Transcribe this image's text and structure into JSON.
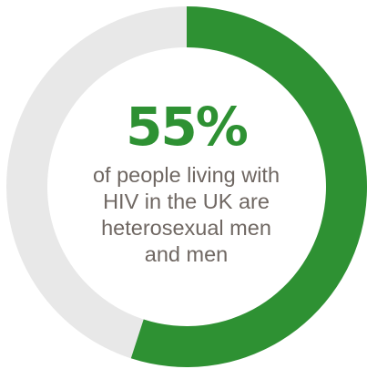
{
  "chart_data": {
    "type": "pie",
    "value_percent": 55,
    "highlight_label": "55%",
    "caption_lines": [
      "of people living with",
      "HIV in the UK are",
      "heterosexual men",
      "and men"
    ],
    "colors": {
      "value": "#2e9133",
      "remainder": "#e8e8e8",
      "text_value": "#2e9133",
      "text_caption": "#6f6762"
    }
  }
}
